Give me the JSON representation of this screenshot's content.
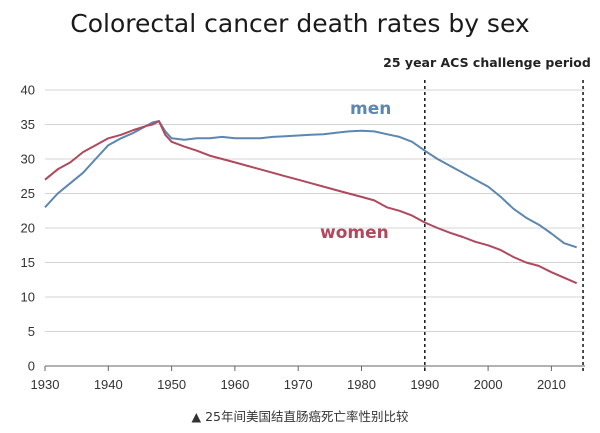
{
  "caption": "▲ 25年间美国结直肠癌死亡率性别比较",
  "chart_data": {
    "type": "line",
    "title": "Colorectal cancer death rates by sex",
    "annotation": "25 year ACS challenge period",
    "period": [
      1990,
      2015
    ],
    "xlim": [
      1930,
      2015
    ],
    "ylim": [
      0,
      40
    ],
    "xticks": [
      1930,
      1940,
      1950,
      1960,
      1970,
      1980,
      1990,
      2000,
      2010
    ],
    "yticks": [
      0,
      5,
      10,
      15,
      20,
      25,
      30,
      35,
      40
    ],
    "grid": true,
    "series": [
      {
        "name": "men",
        "color": "#5b87b0",
        "x": [
          1930,
          1932,
          1934,
          1936,
          1938,
          1940,
          1942,
          1944,
          1946,
          1947,
          1948,
          1949,
          1950,
          1952,
          1954,
          1956,
          1958,
          1960,
          1962,
          1964,
          1966,
          1968,
          1970,
          1972,
          1974,
          1976,
          1978,
          1980,
          1982,
          1984,
          1986,
          1988,
          1990,
          1992,
          1994,
          1996,
          1998,
          2000,
          2002,
          2004,
          2006,
          2008,
          2010,
          2012,
          2014
        ],
        "y": [
          23.0,
          25.0,
          26.5,
          28.0,
          30.0,
          32.0,
          33.0,
          33.8,
          34.8,
          35.3,
          35.5,
          34.0,
          33.0,
          32.8,
          33.0,
          33.0,
          33.2,
          33.0,
          33.0,
          33.0,
          33.2,
          33.3,
          33.4,
          33.5,
          33.6,
          33.8,
          34.0,
          34.1,
          34.0,
          33.6,
          33.2,
          32.5,
          31.2,
          30.0,
          29.0,
          28.0,
          27.0,
          26.0,
          24.5,
          22.8,
          21.5,
          20.5,
          19.2,
          17.8,
          17.2
        ]
      },
      {
        "name": "women",
        "color": "#b0485e",
        "x": [
          1930,
          1932,
          1934,
          1936,
          1938,
          1940,
          1942,
          1944,
          1946,
          1947,
          1948,
          1949,
          1950,
          1952,
          1954,
          1956,
          1958,
          1960,
          1962,
          1964,
          1966,
          1968,
          1970,
          1972,
          1974,
          1976,
          1978,
          1980,
          1982,
          1984,
          1986,
          1988,
          1990,
          1992,
          1994,
          1996,
          1998,
          2000,
          2002,
          2004,
          2006,
          2008,
          2010,
          2012,
          2014
        ],
        "y": [
          27.0,
          28.5,
          29.5,
          31.0,
          32.0,
          33.0,
          33.5,
          34.2,
          34.8,
          35.0,
          35.5,
          33.5,
          32.5,
          31.8,
          31.2,
          30.5,
          30.0,
          29.5,
          29.0,
          28.5,
          28.0,
          27.5,
          27.0,
          26.5,
          26.0,
          25.5,
          25.0,
          24.5,
          24.0,
          23.0,
          22.5,
          21.8,
          20.8,
          20.0,
          19.3,
          18.7,
          18.0,
          17.5,
          16.8,
          15.8,
          15.0,
          14.5,
          13.6,
          12.8,
          12.0
        ]
      }
    ]
  }
}
